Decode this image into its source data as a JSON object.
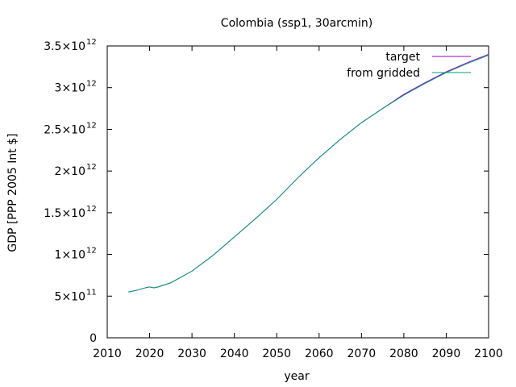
{
  "chart_data": {
    "type": "line",
    "title": "Colombia (ssp1, 30arcmin)",
    "xlabel": "year",
    "ylabel": "GDP [PPP 2005 Int $]",
    "xlim": [
      2010,
      2100
    ],
    "ylim": [
      0,
      3500000000000.0
    ],
    "grid": false,
    "legend_position": "top-right",
    "x_ticks": [
      "2010",
      "2020",
      "2030",
      "2040",
      "2050",
      "2060",
      "2070",
      "2080",
      "2090",
      "2100"
    ],
    "y_ticks": [
      {
        "value": 0,
        "mantissa": "0",
        "exp": ""
      },
      {
        "value": 500000000000.0,
        "mantissa": "5×10",
        "exp": "11"
      },
      {
        "value": 1000000000000.0,
        "mantissa": "1×10",
        "exp": "12"
      },
      {
        "value": 1500000000000.0,
        "mantissa": "1.5×10",
        "exp": "12"
      },
      {
        "value": 2000000000000.0,
        "mantissa": "2×10",
        "exp": "12"
      },
      {
        "value": 2500000000000.0,
        "mantissa": "2.5×10",
        "exp": "12"
      },
      {
        "value": 3000000000000.0,
        "mantissa": "3×10",
        "exp": "12"
      },
      {
        "value": 3500000000000.0,
        "mantissa": "3.5×10",
        "exp": "12"
      }
    ],
    "x": [
      2015,
      2017,
      2019,
      2020,
      2021,
      2022,
      2025,
      2030,
      2035,
      2040,
      2045,
      2050,
      2055,
      2060,
      2065,
      2070,
      2075,
      2080,
      2085,
      2090,
      2095,
      2100
    ],
    "series": [
      {
        "name": "target",
        "color": "#9400d3",
        "values": [
          550000000000.0,
          570000000000.0,
          600000000000.0,
          610000000000.0,
          600000000000.0,
          610000000000.0,
          660000000000.0,
          800000000000.0,
          990000000000.0,
          1210000000000.0,
          1430000000000.0,
          1660000000000.0,
          1920000000000.0,
          2160000000000.0,
          2380000000000.0,
          2580000000000.0,
          2750000000000.0,
          2920000000000.0,
          3060000000000.0,
          3190000000000.0,
          3300000000000.0,
          3400000000000.0
        ]
      },
      {
        "name": "from gridded",
        "color": "#009e73",
        "values": [
          550000000000.0,
          570000000000.0,
          600000000000.0,
          610000000000.0,
          600000000000.0,
          610000000000.0,
          660000000000.0,
          800000000000.0,
          990000000000.0,
          1210000000000.0,
          1430000000000.0,
          1660000000000.0,
          1920000000000.0,
          2160000000000.0,
          2380000000000.0,
          2580000000000.0,
          2750000000000.0,
          2910000000000.0,
          3050000000000.0,
          3180000000000.0,
          3290000000000.0,
          3390000000000.0
        ]
      }
    ]
  }
}
